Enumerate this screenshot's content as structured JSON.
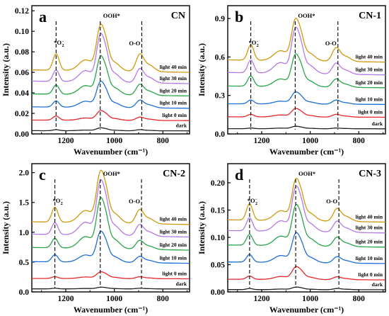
{
  "colors": {
    "dark": "#222222",
    "light 0 min": "#e8262b",
    "light 10 min": "#1f6fd6",
    "light 20 min": "#2aa64a",
    "light 30 min": "#b47ae6",
    "light 40 min": "#cf9a10",
    "marker": "#000000"
  },
  "chart_data": [
    {
      "type": "line",
      "panel_label": "a",
      "title": "CN",
      "xlabel": "Wavenumber (cm⁻¹)",
      "ylabel": "Intensity (a.u.)",
      "xlim": [
        1340,
        690
      ],
      "x_reversed": true,
      "ylim": [
        0.0,
        0.125
      ],
      "xticks": [
        1200,
        1000,
        800
      ],
      "yticks": [
        0.0,
        0.02,
        0.04,
        0.06,
        0.08,
        0.1,
        0.12
      ],
      "ytick_labels": [
        "0.00",
        "0.02",
        "0.04",
        "0.06",
        "0.08",
        "0.10",
        "0.12"
      ],
      "grid": false,
      "peak_markers": [
        1240,
        1058,
        887
      ],
      "peak_labels": [
        {
          "text": "*O",
          "sub": "2",
          "sup": "−",
          "x": 1240
        },
        {
          "text": "OOH*",
          "x": 1058
        },
        {
          "text": "O-O",
          "x": 887
        }
      ],
      "series": [
        {
          "name": "dark",
          "baseline": 0.003,
          "peaks": [
            0.001,
            0.003,
            0.001
          ]
        },
        {
          "name": "light 0 min",
          "baseline": 0.013,
          "peaks": [
            0.004,
            0.01,
            0.003
          ]
        },
        {
          "name": "light 10 min",
          "baseline": 0.025,
          "peaks": [
            0.006,
            0.027,
            0.007
          ]
        },
        {
          "name": "light 20 min",
          "baseline": 0.037,
          "peaks": [
            0.009,
            0.04,
            0.01
          ]
        },
        {
          "name": "light 30 min",
          "baseline": 0.049,
          "peaks": [
            0.011,
            0.05,
            0.013
          ]
        },
        {
          "name": "light 40 min",
          "baseline": 0.06,
          "peaks": [
            0.016,
            0.048,
            0.016
          ]
        }
      ]
    },
    {
      "type": "line",
      "panel_label": "b",
      "title": "CN-1",
      "xlabel": "Wavenumber (cm⁻¹)",
      "ylabel": "Intensity (a.u.)",
      "xlim": [
        1340,
        690
      ],
      "x_reversed": true,
      "ylim": [
        0.0,
        1.0
      ],
      "xticks": [
        1200,
        1000,
        800
      ],
      "yticks": [
        0.0,
        0.3,
        0.6,
        0.9
      ],
      "ytick_labels": [
        "0.0",
        "0.3",
        "0.6",
        "0.9"
      ],
      "grid": false,
      "peak_markers": [
        1245,
        1062,
        886
      ],
      "peak_labels": [
        {
          "text": "*O",
          "sub": "2",
          "sup": "−",
          "x": 1245
        },
        {
          "text": "OOH*",
          "x": 1062
        },
        {
          "text": "O-O",
          "x": 886
        }
      ],
      "series": [
        {
          "name": "dark",
          "baseline": 0.04,
          "peaks": [
            0.005,
            0.02,
            0.005
          ]
        },
        {
          "name": "light 0 min",
          "baseline": 0.13,
          "peaks": [
            0.02,
            0.07,
            0.02
          ]
        },
        {
          "name": "light 10 min",
          "baseline": 0.23,
          "peaks": [
            0.03,
            0.1,
            0.03
          ]
        },
        {
          "name": "light 20 min",
          "baseline": 0.36,
          "peaks": [
            0.08,
            0.27,
            0.06
          ]
        },
        {
          "name": "light 30 min",
          "baseline": 0.46,
          "peaks": [
            0.1,
            0.38,
            0.08
          ]
        },
        {
          "name": "light 40 min",
          "baseline": 0.56,
          "peaks": [
            0.12,
            0.35,
            0.1
          ]
        }
      ]
    },
    {
      "type": "line",
      "panel_label": "c",
      "title": "CN-2",
      "xlabel": "Wavenumber (cm⁻¹)",
      "ylabel": "Intensity (a.u.)",
      "xlim": [
        1340,
        690
      ],
      "x_reversed": true,
      "ylim": [
        0.0,
        2.15
      ],
      "xticks": [
        1200,
        1000,
        800
      ],
      "yticks": [
        0.0,
        0.5,
        1.0,
        1.5,
        2.0
      ],
      "ytick_labels": [
        "0.0",
        "0.5",
        "1.0",
        "1.5",
        "2.0"
      ],
      "grid": false,
      "peak_markers": [
        1245,
        1058,
        888
      ],
      "peak_labels": [
        {
          "text": "*O",
          "sub": "2",
          "sup": "−",
          "x": 1245
        },
        {
          "text": "OOH*",
          "x": 1058
        },
        {
          "text": "O-O",
          "x": 888
        }
      ],
      "series": [
        {
          "name": "dark",
          "baseline": 0.05,
          "peaks": [
            0.01,
            0.03,
            0.01
          ]
        },
        {
          "name": "light 0 min",
          "baseline": 0.22,
          "peaks": [
            0.03,
            0.12,
            0.03
          ]
        },
        {
          "name": "light 10 min",
          "baseline": 0.48,
          "peaks": [
            0.12,
            0.55,
            0.1
          ]
        },
        {
          "name": "light 20 min",
          "baseline": 0.7,
          "peaks": [
            0.16,
            0.9,
            0.14
          ]
        },
        {
          "name": "light 30 min",
          "baseline": 0.92,
          "peaks": [
            0.2,
            0.98,
            0.18
          ]
        },
        {
          "name": "light 40 min",
          "baseline": 1.13,
          "peaks": [
            0.25,
            0.93,
            0.22
          ]
        }
      ]
    },
    {
      "type": "line",
      "panel_label": "d",
      "title": "CN-3",
      "xlabel": "Wavenumber (cm⁻¹)",
      "ylabel": "Intensity (a.u.)",
      "xlim": [
        1340,
        690
      ],
      "x_reversed": true,
      "ylim": [
        0.0,
        0.235
      ],
      "xticks": [
        1200,
        1000,
        800
      ],
      "yticks": [
        0.0,
        0.05,
        0.1,
        0.15,
        0.2
      ],
      "ytick_labels": [
        "0.00",
        "0.05",
        "0.10",
        "0.15",
        "0.20"
      ],
      "grid": false,
      "peak_markers": [
        1250,
        1060,
        882
      ],
      "peak_labels": [
        {
          "text": "*O",
          "sub": "2",
          "sup": "−",
          "x": 1250
        },
        {
          "text": "OOH*",
          "x": 1060
        },
        {
          "text": "O-O",
          "x": 882
        }
      ],
      "series": [
        {
          "name": "dark",
          "baseline": 0.004,
          "peaks": [
            0.002,
            0.005,
            0.002
          ]
        },
        {
          "name": "light 0 min",
          "baseline": 0.022,
          "peaks": [
            0.006,
            0.025,
            0.005
          ]
        },
        {
          "name": "light 10 min",
          "baseline": 0.052,
          "peaks": [
            0.014,
            0.058,
            0.011
          ]
        },
        {
          "name": "light 20 min",
          "baseline": 0.082,
          "peaks": [
            0.02,
            0.08,
            0.016
          ]
        },
        {
          "name": "light 30 min",
          "baseline": 0.108,
          "peaks": [
            0.024,
            0.088,
            0.019
          ]
        },
        {
          "name": "light 40 min",
          "baseline": 0.128,
          "peaks": [
            0.03,
            0.082,
            0.022
          ]
        }
      ]
    }
  ]
}
